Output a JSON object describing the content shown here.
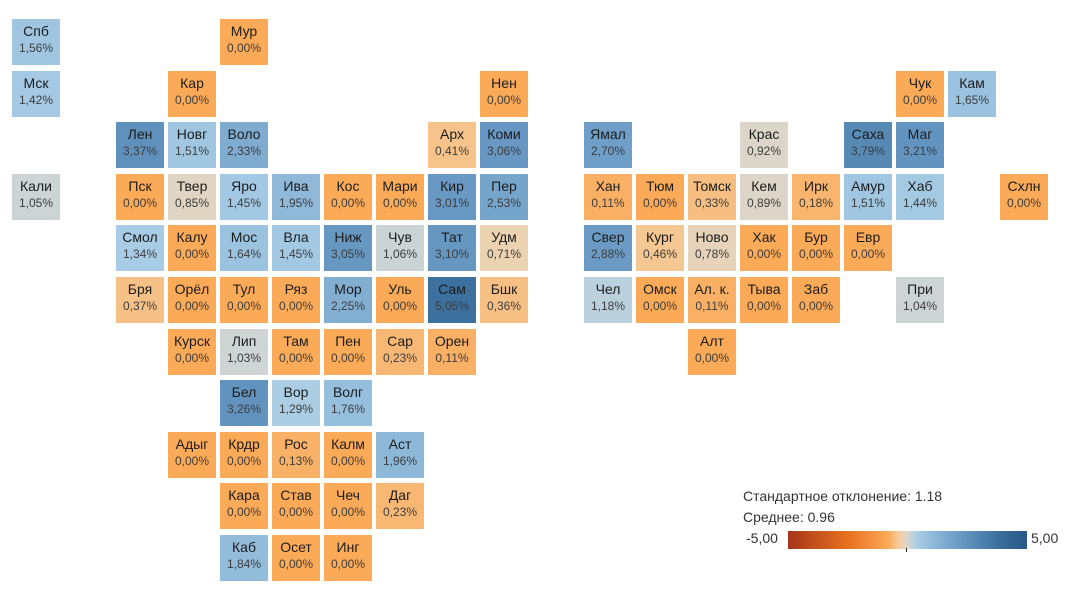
{
  "chart_data": {
    "type": "heatmap",
    "title": "",
    "value_unit": "%",
    "color_scale": {
      "min": -5,
      "max": 5,
      "min_label": "-5,00",
      "max_label": "5,00",
      "low_color": "#a5361a",
      "mid_color": "#d8d6cf",
      "high_color": "#2a5783"
    },
    "legend": {
      "std_label": "Стандартное отклонение: 1.18",
      "mean_label": "Среднее: 0.96",
      "std": 1.18,
      "mean": 0.96,
      "placement": "bottom-right"
    },
    "regions": [
      {
        "name": "Спб",
        "value": "1,56%",
        "v": 1.56,
        "row": 0,
        "col": 0
      },
      {
        "name": "Мур",
        "value": "0,00%",
        "v": 0,
        "row": 0,
        "col": 4
      },
      {
        "name": "Мск",
        "value": "1,42%",
        "v": 1.42,
        "row": 1,
        "col": 0
      },
      {
        "name": "Кар",
        "value": "0,00%",
        "v": 0,
        "row": 1,
        "col": 3
      },
      {
        "name": "Нен",
        "value": "0,00%",
        "v": 0,
        "row": 1,
        "col": 9
      },
      {
        "name": "Чук",
        "value": "0,00%",
        "v": 0,
        "row": 1,
        "col": 17
      },
      {
        "name": "Кам",
        "value": "1,65%",
        "v": 1.65,
        "row": 1,
        "col": 18
      },
      {
        "name": "Лен",
        "value": "3,37%",
        "v": 3.37,
        "row": 2,
        "col": 2
      },
      {
        "name": "Новг",
        "value": "1,51%",
        "v": 1.51,
        "row": 2,
        "col": 3
      },
      {
        "name": "Воло",
        "value": "2,33%",
        "v": 2.33,
        "row": 2,
        "col": 4
      },
      {
        "name": "Арх",
        "value": "0,41%",
        "v": 0.41,
        "row": 2,
        "col": 8
      },
      {
        "name": "Коми",
        "value": "3,06%",
        "v": 3.06,
        "row": 2,
        "col": 9
      },
      {
        "name": "Ямал",
        "value": "2,70%",
        "v": 2.7,
        "row": 2,
        "col": 11
      },
      {
        "name": "Крас",
        "value": "0,92%",
        "v": 0.92,
        "row": 2,
        "col": 14
      },
      {
        "name": "Саха",
        "value": "3,79%",
        "v": 3.79,
        "row": 2,
        "col": 16
      },
      {
        "name": "Маг",
        "value": "3,21%",
        "v": 3.21,
        "row": 2,
        "col": 17
      },
      {
        "name": "Кали",
        "value": "1,05%",
        "v": 1.05,
        "row": 3,
        "col": 0
      },
      {
        "name": "Пск",
        "value": "0,00%",
        "v": 0,
        "row": 3,
        "col": 2
      },
      {
        "name": "Твер",
        "value": "0,85%",
        "v": 0.85,
        "row": 3,
        "col": 3
      },
      {
        "name": "Яро",
        "value": "1,45%",
        "v": 1.45,
        "row": 3,
        "col": 4
      },
      {
        "name": "Ива",
        "value": "1,95%",
        "v": 1.95,
        "row": 3,
        "col": 5
      },
      {
        "name": "Кос",
        "value": "0,00%",
        "v": 0,
        "row": 3,
        "col": 6
      },
      {
        "name": "Мари",
        "value": "0,00%",
        "v": 0,
        "row": 3,
        "col": 7
      },
      {
        "name": "Кир",
        "value": "3,01%",
        "v": 3.01,
        "row": 3,
        "col": 8
      },
      {
        "name": "Пер",
        "value": "2,53%",
        "v": 2.53,
        "row": 3,
        "col": 9
      },
      {
        "name": "Хан",
        "value": "0,11%",
        "v": 0.11,
        "row": 3,
        "col": 11
      },
      {
        "name": "Тюм",
        "value": "0,00%",
        "v": 0,
        "row": 3,
        "col": 12
      },
      {
        "name": "Томск",
        "value": "0,33%",
        "v": 0.33,
        "row": 3,
        "col": 13
      },
      {
        "name": "Кем",
        "value": "0,89%",
        "v": 0.89,
        "row": 3,
        "col": 14
      },
      {
        "name": "Ирк",
        "value": "0,18%",
        "v": 0.18,
        "row": 3,
        "col": 15
      },
      {
        "name": "Амур",
        "value": "1,51%",
        "v": 1.51,
        "row": 3,
        "col": 16
      },
      {
        "name": "Хаб",
        "value": "1,44%",
        "v": 1.44,
        "row": 3,
        "col": 17
      },
      {
        "name": "Схлн",
        "value": "0,00%",
        "v": 0,
        "row": 3,
        "col": 19
      },
      {
        "name": "Смол",
        "value": "1,34%",
        "v": 1.34,
        "row": 4,
        "col": 2
      },
      {
        "name": "Калу",
        "value": "0,00%",
        "v": 0,
        "row": 4,
        "col": 3
      },
      {
        "name": "Мос",
        "value": "1,64%",
        "v": 1.64,
        "row": 4,
        "col": 4
      },
      {
        "name": "Вла",
        "value": "1,45%",
        "v": 1.45,
        "row": 4,
        "col": 5
      },
      {
        "name": "Ниж",
        "value": "3,05%",
        "v": 3.05,
        "row": 4,
        "col": 6
      },
      {
        "name": "Чув",
        "value": "1,06%",
        "v": 1.06,
        "row": 4,
        "col": 7
      },
      {
        "name": "Тат",
        "value": "3,10%",
        "v": 3.1,
        "row": 4,
        "col": 8
      },
      {
        "name": "Удм",
        "value": "0,71%",
        "v": 0.71,
        "row": 4,
        "col": 9
      },
      {
        "name": "Свер",
        "value": "2,88%",
        "v": 2.88,
        "row": 4,
        "col": 11
      },
      {
        "name": "Кург",
        "value": "0,46%",
        "v": 0.46,
        "row": 4,
        "col": 12
      },
      {
        "name": "Ново",
        "value": "0,78%",
        "v": 0.78,
        "row": 4,
        "col": 13
      },
      {
        "name": "Хак",
        "value": "0,00%",
        "v": 0,
        "row": 4,
        "col": 14
      },
      {
        "name": "Бур",
        "value": "0,00%",
        "v": 0,
        "row": 4,
        "col": 15
      },
      {
        "name": "Евр",
        "value": "0,00%",
        "v": 0,
        "row": 4,
        "col": 16
      },
      {
        "name": "Бря",
        "value": "0,37%",
        "v": 0.37,
        "row": 5,
        "col": 2
      },
      {
        "name": "Орёл",
        "value": "0,00%",
        "v": 0,
        "row": 5,
        "col": 3
      },
      {
        "name": "Тул",
        "value": "0,00%",
        "v": 0,
        "row": 5,
        "col": 4
      },
      {
        "name": "Ряз",
        "value": "0,00%",
        "v": 0,
        "row": 5,
        "col": 5
      },
      {
        "name": "Мор",
        "value": "2,25%",
        "v": 2.25,
        "row": 5,
        "col": 6
      },
      {
        "name": "Уль",
        "value": "0,00%",
        "v": 0,
        "row": 5,
        "col": 7
      },
      {
        "name": "Сам",
        "value": "5,05%",
        "v": 5.05,
        "row": 5,
        "col": 8
      },
      {
        "name": "Бшк",
        "value": "0,36%",
        "v": 0.36,
        "row": 5,
        "col": 9
      },
      {
        "name": "Чел",
        "value": "1,18%",
        "v": 1.18,
        "row": 5,
        "col": 11
      },
      {
        "name": "Омск",
        "value": "0,00%",
        "v": 0,
        "row": 5,
        "col": 12
      },
      {
        "name": "Ал. к.",
        "value": "0,11%",
        "v": 0.11,
        "row": 5,
        "col": 13
      },
      {
        "name": "Тыва",
        "value": "0,00%",
        "v": 0,
        "row": 5,
        "col": 14
      },
      {
        "name": "Заб",
        "value": "0,00%",
        "v": 0,
        "row": 5,
        "col": 15
      },
      {
        "name": "При",
        "value": "1,04%",
        "v": 1.04,
        "row": 5,
        "col": 17
      },
      {
        "name": "Курск",
        "value": "0,00%",
        "v": 0,
        "row": 6,
        "col": 3
      },
      {
        "name": "Лип",
        "value": "1,03%",
        "v": 1.03,
        "row": 6,
        "col": 4
      },
      {
        "name": "Там",
        "value": "0,00%",
        "v": 0,
        "row": 6,
        "col": 5
      },
      {
        "name": "Пен",
        "value": "0,00%",
        "v": 0,
        "row": 6,
        "col": 6
      },
      {
        "name": "Сар",
        "value": "0,23%",
        "v": 0.23,
        "row": 6,
        "col": 7
      },
      {
        "name": "Орен",
        "value": "0,11%",
        "v": 0.11,
        "row": 6,
        "col": 8
      },
      {
        "name": "Алт",
        "value": "0,00%",
        "v": 0,
        "row": 6,
        "col": 13
      },
      {
        "name": "Бел",
        "value": "3,26%",
        "v": 3.26,
        "row": 7,
        "col": 4
      },
      {
        "name": "Вор",
        "value": "1,29%",
        "v": 1.29,
        "row": 7,
        "col": 5
      },
      {
        "name": "Волг",
        "value": "1,76%",
        "v": 1.76,
        "row": 7,
        "col": 6
      },
      {
        "name": "Адыг",
        "value": "0,00%",
        "v": 0,
        "row": 8,
        "col": 3
      },
      {
        "name": "Крдр",
        "value": "0,00%",
        "v": 0,
        "row": 8,
        "col": 4
      },
      {
        "name": "Рос",
        "value": "0,13%",
        "v": 0.13,
        "row": 8,
        "col": 5
      },
      {
        "name": "Калм",
        "value": "0,00%",
        "v": 0,
        "row": 8,
        "col": 6
      },
      {
        "name": "Аст",
        "value": "1,96%",
        "v": 1.96,
        "row": 8,
        "col": 7
      },
      {
        "name": "Кара",
        "value": "0,00%",
        "v": 0,
        "row": 9,
        "col": 4
      },
      {
        "name": "Став",
        "value": "0,00%",
        "v": 0,
        "row": 9,
        "col": 5
      },
      {
        "name": "Чеч",
        "value": "0,00%",
        "v": 0,
        "row": 9,
        "col": 6
      },
      {
        "name": "Даг",
        "value": "0,23%",
        "v": 0.23,
        "row": 9,
        "col": 7
      },
      {
        "name": "Каб",
        "value": "1,84%",
        "v": 1.84,
        "row": 10,
        "col": 4
      },
      {
        "name": "Осет",
        "value": "0,00%",
        "v": 0,
        "row": 10,
        "col": 5
      },
      {
        "name": "Инг",
        "value": "0,00%",
        "v": 0,
        "row": 10,
        "col": 6
      }
    ]
  }
}
